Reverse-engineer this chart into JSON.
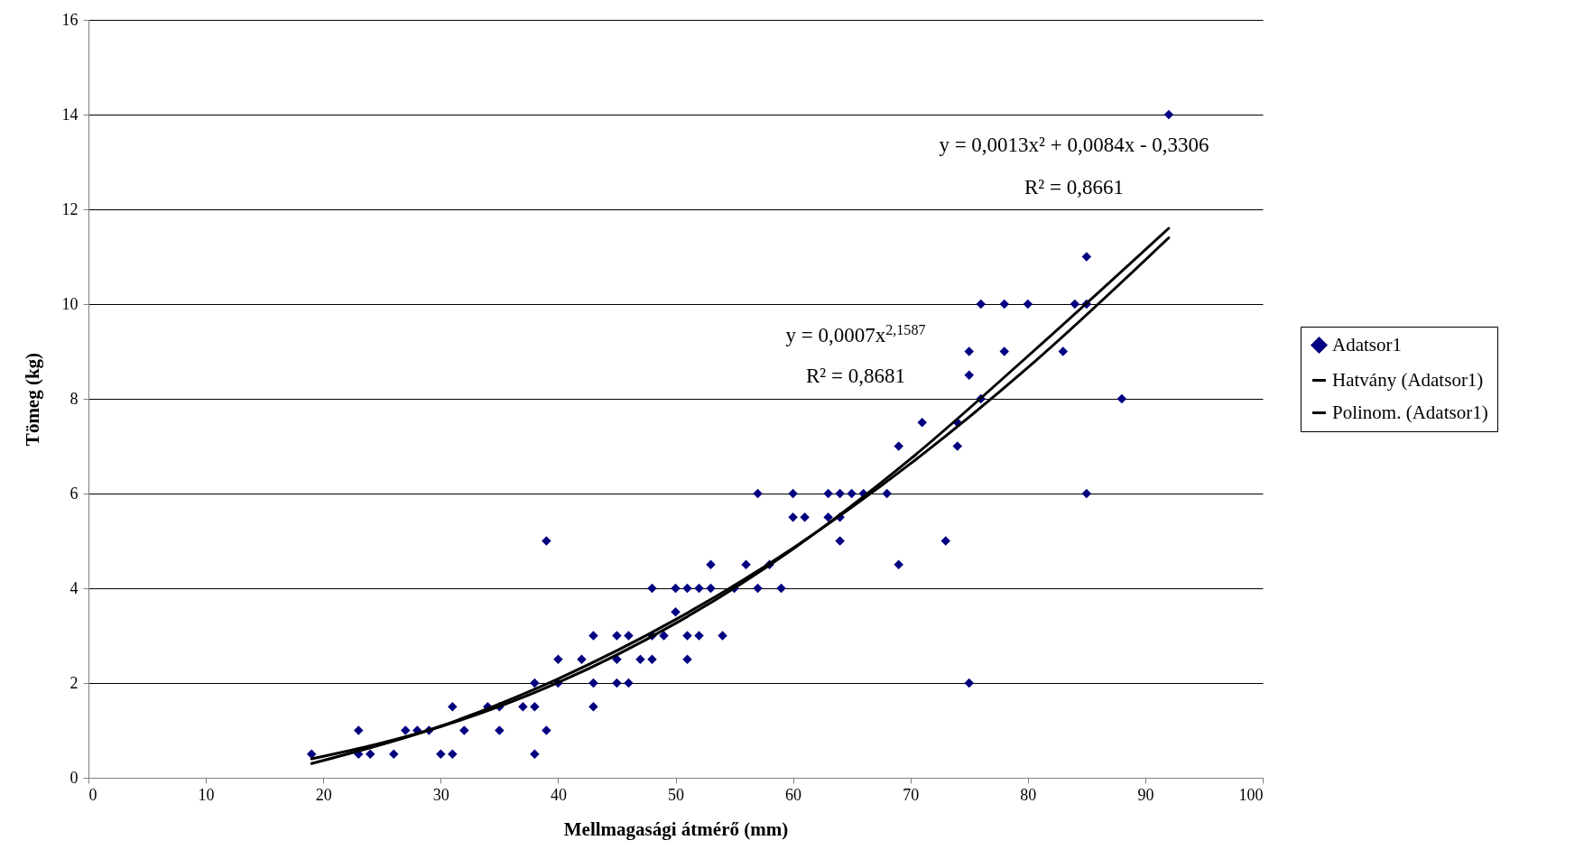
{
  "chart_data": {
    "type": "scatter",
    "xlabel": "Mellmagasági átmérő (mm)",
    "ylabel": "Tömeg (kg)",
    "xlim": [
      0,
      100
    ],
    "xticks": [
      0,
      10,
      20,
      30,
      40,
      50,
      60,
      70,
      80,
      90,
      100
    ],
    "ylim": [
      0,
      16
    ],
    "yticks": [
      0,
      2,
      4,
      6,
      8,
      10,
      12,
      14,
      16
    ],
    "grid": "y",
    "legend": "right",
    "marker": "diamond",
    "annotations": [
      "y = 0,0013x² + 0,0084x - 0,3306",
      "R² = 0,8661",
      "y = 0,0007x$^{2,1587}$",
      "R² = 0,8681"
    ],
    "series": [
      {
        "name": "Adatsor1",
        "color": "#000080",
        "x": [
          19,
          23,
          23,
          24,
          26,
          27,
          28,
          29,
          30,
          31,
          31,
          32,
          34,
          35,
          35,
          37,
          38,
          38,
          38,
          39,
          39,
          40,
          40,
          42,
          43,
          43,
          43,
          45,
          45,
          45,
          46,
          46,
          47,
          48,
          48,
          48,
          49,
          50,
          50,
          51,
          51,
          51,
          52,
          52,
          53,
          53,
          54,
          55,
          56,
          57,
          57,
          58,
          59,
          60,
          60,
          61,
          63,
          63,
          64,
          64,
          64,
          65,
          66,
          68,
          69,
          69,
          71,
          73,
          74,
          74,
          75,
          75,
          75,
          76,
          76,
          78,
          78,
          80,
          83,
          84,
          85,
          85,
          85,
          88,
          92
        ],
        "values": [
          0.5,
          1,
          0.5,
          0.5,
          0.5,
          1,
          1,
          1,
          0.5,
          0.5,
          1.5,
          1,
          1.5,
          1.5,
          1,
          1.5,
          2,
          1.5,
          0.5,
          5,
          1,
          2.5,
          2,
          2.5,
          3,
          2,
          1.5,
          3,
          2.5,
          2,
          3,
          2,
          2.5,
          4,
          3,
          2.5,
          3,
          4,
          3.5,
          4,
          3,
          2.5,
          4,
          3,
          4.5,
          4,
          3,
          4,
          4.5,
          6,
          4,
          4.5,
          4,
          6,
          5.5,
          5.5,
          6,
          5.5,
          6,
          5.5,
          5,
          6,
          6,
          6,
          7,
          4.5,
          7.5,
          5,
          7.5,
          7,
          9,
          8.5,
          2,
          10,
          8,
          10,
          9,
          10,
          9,
          10,
          11,
          10,
          6,
          8,
          14
        ]
      },
      {
        "name": "Hatvány (Adatsor1)",
        "type": "line",
        "color": "#000000",
        "marker": "none",
        "line_style": "solid",
        "x": [
          19,
          30,
          40,
          50,
          60,
          70,
          80,
          92
        ],
        "values": [
          0.4,
          1.08,
          2.01,
          3.26,
          4.83,
          6.73,
          8.9,
          11.6
        ]
      },
      {
        "name": "Polinom. (Adatsor1)",
        "type": "line",
        "color": "#000000",
        "marker": "none",
        "line_style": "solid",
        "x": [
          19,
          30,
          40,
          50,
          60,
          70,
          80,
          92
        ],
        "values": [
          0.3,
          1.09,
          2.09,
          3.34,
          4.85,
          6.63,
          8.66,
          11.4
        ]
      }
    ]
  }
}
